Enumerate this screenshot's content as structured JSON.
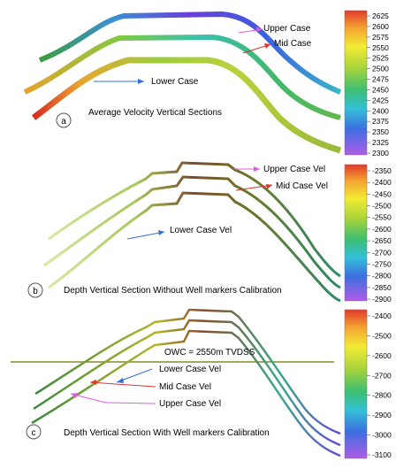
{
  "panels": [
    {
      "letter": "a",
      "caption": "Average Velocity Vertical Sections",
      "labels": [
        "Upper Case",
        "Mid Case",
        "Lower Case"
      ],
      "scale": {
        "ticks": [
          "2625",
          "2600",
          "2575",
          "2550",
          "2525",
          "2500",
          "2475",
          "2450",
          "2425",
          "2400",
          "2375",
          "2350",
          "2325",
          "2300"
        ]
      }
    },
    {
      "letter": "b",
      "caption": "Depth Vertical Section Without Well markers Calibration",
      "labels": [
        "Upper Case Vel",
        "Mid Case Vel",
        "Lower Case Vel"
      ],
      "scale": {
        "ticks": [
          "-2350",
          "-2400",
          "-2450",
          "-2500",
          "-2550",
          "-2600",
          "-2650",
          "-2700",
          "-2750",
          "-2800",
          "-2850",
          "-2900"
        ]
      }
    },
    {
      "letter": "c",
      "caption": "Depth Vertical Section With Well markers Calibration",
      "annotation": "OWC = 2550m TVDSS",
      "labels": [
        "Lower Case Vel",
        "Mid Case Vel",
        "Upper Case Vel"
      ],
      "scale": {
        "ticks": [
          "-2400",
          "-2500",
          "-2600",
          "-2700",
          "-2800",
          "-2900",
          "-3000",
          "-3100"
        ]
      }
    }
  ],
  "colors": {
    "arrow_blue": "#2f6fd6",
    "arrow_red": "#e0342c",
    "arrow_magenta": "#e05be0",
    "owc_line": "#8a8a2a"
  }
}
